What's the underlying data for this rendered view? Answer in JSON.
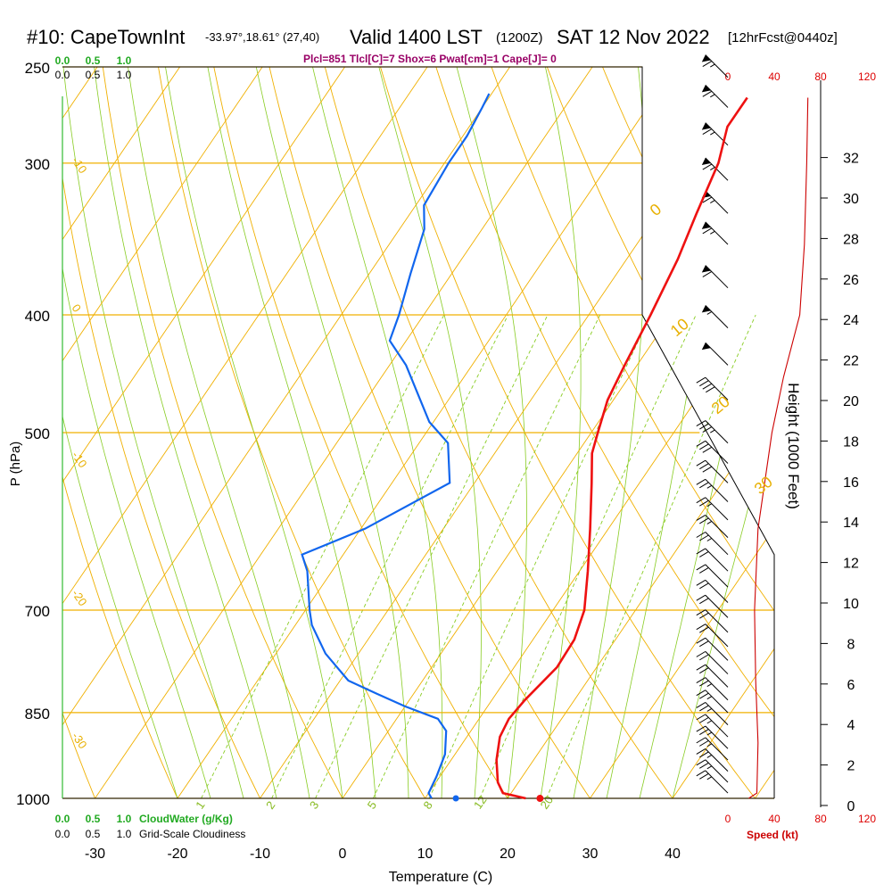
{
  "header": {
    "station": "#10: CapeTownInt",
    "coords": "-33.97°,18.61° (27,40)",
    "valid": "Valid 1400 LST",
    "zulu": "(1200Z)",
    "date": "SAT 12 Nov 2022",
    "forecast": "[12hrFcst@0440z]",
    "indices": "Plcl=851 Tlcl[C]=7 Shox=6 Pwat[cm]=1 Cape[J]= 0"
  },
  "colors": {
    "temperature": "#ee1111",
    "dewpoint": "#1166ee",
    "isotherm": "#f0b000",
    "dry_adiabat": "#f0b000",
    "moist_adiabat": "#88cc22",
    "mixing_ratio": "#88cc22",
    "speed": "#cc0000",
    "cloudwater": "#22aa22"
  },
  "chart_data": {
    "type": "line",
    "title": "#10: CapeTownInt",
    "xlabel": "Temperature (C)",
    "ylabel": "P (hPa)",
    "y2label": "Height (1000 Feet)",
    "xlim": [
      -35,
      45
    ],
    "ylim": [
      1000,
      250
    ],
    "yscale": "log",
    "grid": true,
    "x_ticks": [
      -30,
      -20,
      -10,
      0,
      10,
      20,
      30,
      40
    ],
    "pressure_ticks": [
      250,
      300,
      400,
      500,
      700,
      850,
      1000
    ],
    "height_ticks": [
      0,
      2,
      4,
      6,
      8,
      10,
      12,
      14,
      16,
      18,
      20,
      22,
      24,
      26,
      28,
      30,
      32
    ],
    "speed_ticks": [
      0,
      40,
      80,
      120
    ],
    "speed_label": "Speed (kt)",
    "cloudwater_ticks": [
      "0.0",
      "0.5",
      "1.0"
    ],
    "cloudwater_label": "CloudWater (g/Kg)",
    "cloudiness_ticks": [
      "0.0",
      "0.5",
      "1.0"
    ],
    "cloudiness_label": "Grid-Scale Cloudiness",
    "series": [
      {
        "kind": "temperature",
        "points": [
          {
            "p": 1000,
            "t": 22.2
          },
          {
            "p": 990,
            "t": 19.0
          },
          {
            "p": 970,
            "t": 17.5
          },
          {
            "p": 930,
            "t": 15.5
          },
          {
            "p": 890,
            "t": 14.0
          },
          {
            "p": 860,
            "t": 13.6
          },
          {
            "p": 830,
            "t": 14.0
          },
          {
            "p": 780,
            "t": 15.2
          },
          {
            "p": 740,
            "t": 15.0
          },
          {
            "p": 700,
            "t": 13.8
          },
          {
            "p": 650,
            "t": 11.0
          },
          {
            "p": 600,
            "t": 7.8
          },
          {
            "p": 550,
            "t": 4.2
          },
          {
            "p": 520,
            "t": 1.8
          },
          {
            "p": 500,
            "t": 0.8
          },
          {
            "p": 470,
            "t": -0.7
          },
          {
            "p": 440,
            "t": -1.5
          },
          {
            "p": 400,
            "t": -2.5
          },
          {
            "p": 360,
            "t": -3.8
          },
          {
            "p": 330,
            "t": -5.3
          },
          {
            "p": 300,
            "t": -6.8
          },
          {
            "p": 280,
            "t": -8.7
          },
          {
            "p": 265,
            "t": -8.7
          }
        ]
      },
      {
        "kind": "dewpoint",
        "points": [
          {
            "p": 1000,
            "t": 10.8
          },
          {
            "p": 990,
            "t": 10.0
          },
          {
            "p": 960,
            "t": 9.6
          },
          {
            "p": 920,
            "t": 8.8
          },
          {
            "p": 880,
            "t": 7.0
          },
          {
            "p": 860,
            "t": 5.0
          },
          {
            "p": 840,
            "t": 0.0
          },
          {
            "p": 820,
            "t": -4.5
          },
          {
            "p": 800,
            "t": -9.0
          },
          {
            "p": 760,
            "t": -14.0
          },
          {
            "p": 720,
            "t": -18.0
          },
          {
            "p": 700,
            "t": -19.5
          },
          {
            "p": 650,
            "t": -23.0
          },
          {
            "p": 630,
            "t": -25.0
          },
          {
            "p": 600,
            "t": -19.5
          },
          {
            "p": 550,
            "t": -13.0
          },
          {
            "p": 510,
            "t": -16.5
          },
          {
            "p": 490,
            "t": -20.5
          },
          {
            "p": 440,
            "t": -28.0
          },
          {
            "p": 420,
            "t": -32.0
          },
          {
            "p": 400,
            "t": -33.0
          },
          {
            "p": 370,
            "t": -35.0
          },
          {
            "p": 340,
            "t": -37.0
          },
          {
            "p": 325,
            "t": -39.0
          },
          {
            "p": 300,
            "t": -39.5
          },
          {
            "p": 285,
            "t": -39.5
          },
          {
            "p": 270,
            "t": -40.0
          },
          {
            "p": 263,
            "t": -40.3
          }
        ]
      },
      {
        "kind": "wind_speed",
        "points": [
          {
            "p": 1000,
            "kt": 18
          },
          {
            "p": 990,
            "kt": 25
          },
          {
            "p": 900,
            "kt": 26
          },
          {
            "p": 800,
            "kt": 24
          },
          {
            "p": 700,
            "kt": 23
          },
          {
            "p": 600,
            "kt": 26
          },
          {
            "p": 500,
            "kt": 38
          },
          {
            "p": 450,
            "kt": 48
          },
          {
            "p": 400,
            "kt": 62
          },
          {
            "p": 350,
            "kt": 66
          },
          {
            "p": 300,
            "kt": 68
          },
          {
            "p": 265,
            "kt": 69
          }
        ]
      }
    ],
    "surface_markers": {
      "temperature": 23.5,
      "dewpoint": 13.3
    },
    "isotherm_labels": [
      {
        "label": "-10",
        "t": -10
      },
      {
        "label": "0",
        "t": 0
      },
      {
        "label": "-10",
        "t": -10
      },
      {
        "label": "-20",
        "t": -20
      },
      {
        "label": "-30",
        "t": -30
      },
      {
        "label": "0",
        "t": 0
      },
      {
        "label": "10",
        "t": 10
      },
      {
        "label": "20",
        "t": 20
      },
      {
        "label": "30",
        "t": 30
      }
    ],
    "mixing_ratio_labels": [
      "1",
      "2",
      "3",
      "5",
      "8",
      "12",
      "20"
    ],
    "wind_barbs": [
      {
        "p": 990,
        "kt": 25
      },
      {
        "p": 970,
        "kt": 26
      },
      {
        "p": 950,
        "kt": 26
      },
      {
        "p": 930,
        "kt": 26
      },
      {
        "p": 910,
        "kt": 26
      },
      {
        "p": 890,
        "kt": 26
      },
      {
        "p": 870,
        "kt": 26
      },
      {
        "p": 850,
        "kt": 25
      },
      {
        "p": 830,
        "kt": 25
      },
      {
        "p": 810,
        "kt": 24
      },
      {
        "p": 790,
        "kt": 24
      },
      {
        "p": 770,
        "kt": 24
      },
      {
        "p": 750,
        "kt": 23
      },
      {
        "p": 730,
        "kt": 23
      },
      {
        "p": 710,
        "kt": 23
      },
      {
        "p": 690,
        "kt": 23
      },
      {
        "p": 670,
        "kt": 24
      },
      {
        "p": 650,
        "kt": 24
      },
      {
        "p": 630,
        "kt": 25
      },
      {
        "p": 610,
        "kt": 25
      },
      {
        "p": 590,
        "kt": 26
      },
      {
        "p": 570,
        "kt": 28
      },
      {
        "p": 550,
        "kt": 30
      },
      {
        "p": 530,
        "kt": 33
      },
      {
        "p": 510,
        "kt": 36
      },
      {
        "p": 470,
        "kt": 42
      },
      {
        "p": 440,
        "kt": 50
      },
      {
        "p": 410,
        "kt": 58
      },
      {
        "p": 380,
        "kt": 62
      },
      {
        "p": 350,
        "kt": 65
      },
      {
        "p": 330,
        "kt": 66
      },
      {
        "p": 310,
        "kt": 67
      },
      {
        "p": 290,
        "kt": 68
      },
      {
        "p": 270,
        "kt": 68
      },
      {
        "p": 255,
        "kt": 69
      }
    ]
  }
}
